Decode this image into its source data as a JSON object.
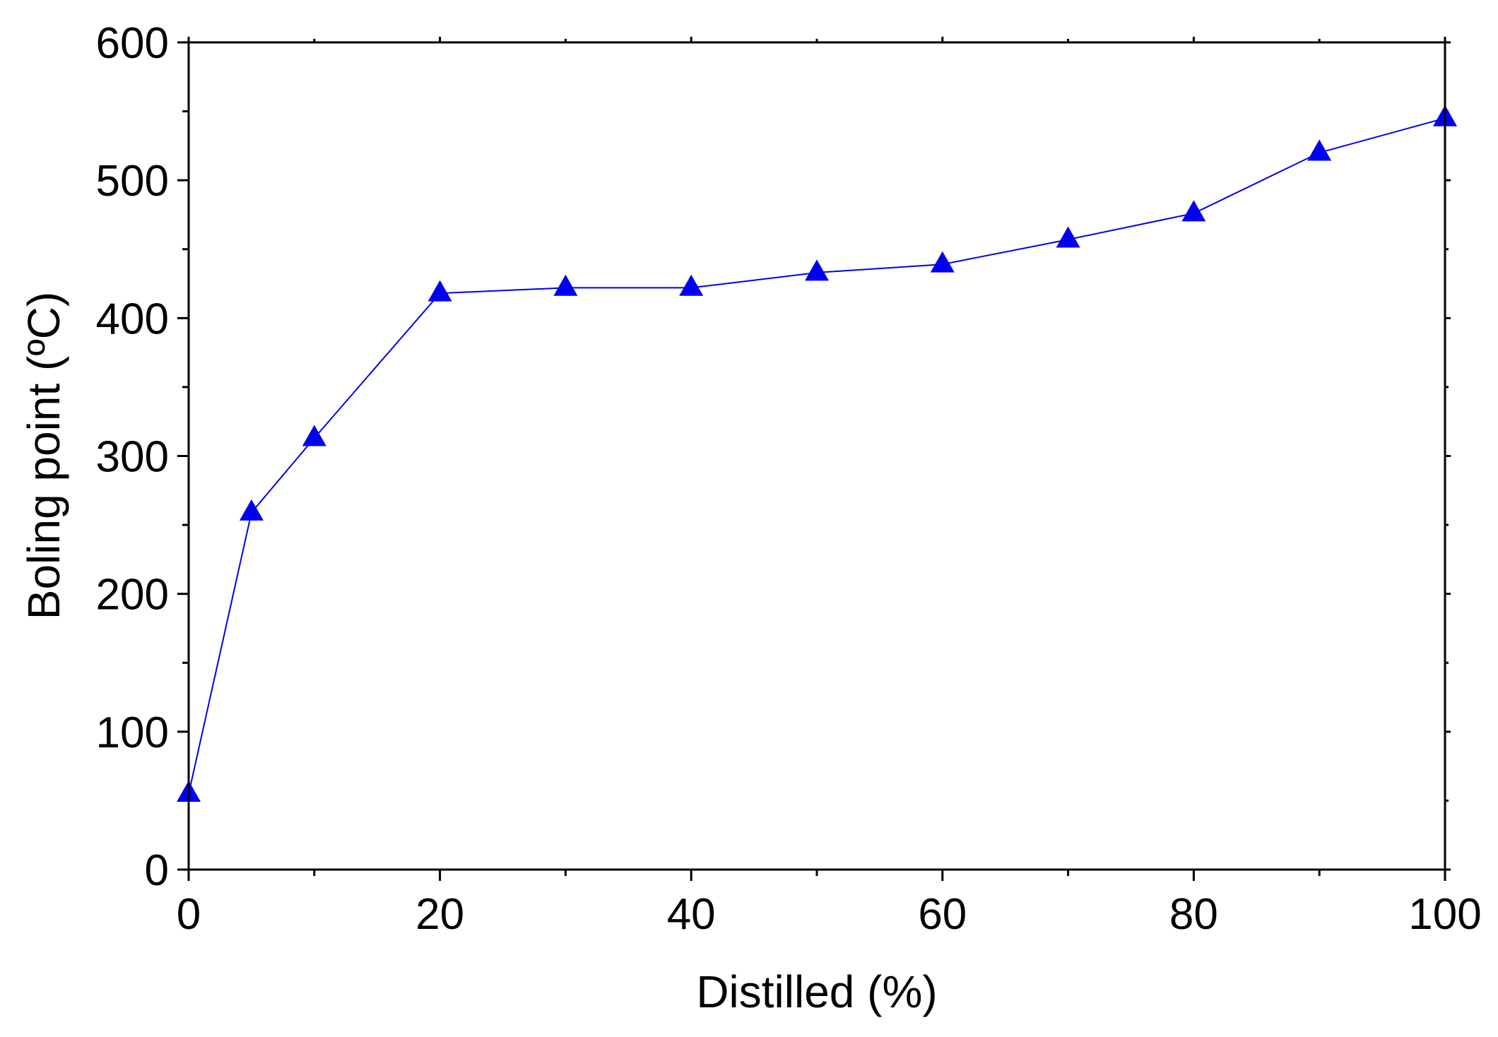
{
  "chart_data": {
    "type": "line",
    "title": "",
    "xlabel": "Distilled (%)",
    "ylabel": "Boling point (ºC)",
    "xlim": [
      0,
      100
    ],
    "ylim": [
      0,
      600
    ],
    "x_ticks": [
      0,
      20,
      40,
      60,
      80,
      100
    ],
    "y_ticks": [
      0,
      100,
      200,
      300,
      400,
      500,
      600
    ],
    "x_minor_ticks": [
      10,
      30,
      50,
      70,
      90
    ],
    "y_minor_ticks": [
      50,
      150,
      250,
      350,
      450,
      550
    ],
    "grid": false,
    "legend": "none",
    "marker": "triangle",
    "color": "#0000ee",
    "series": [
      {
        "x": [
          0,
          5,
          10,
          20,
          30,
          40,
          50,
          60,
          70,
          80,
          90,
          100
        ],
        "values": [
          55,
          259,
          313,
          418,
          422,
          422,
          433,
          439,
          457,
          476,
          520,
          545
        ]
      }
    ]
  }
}
